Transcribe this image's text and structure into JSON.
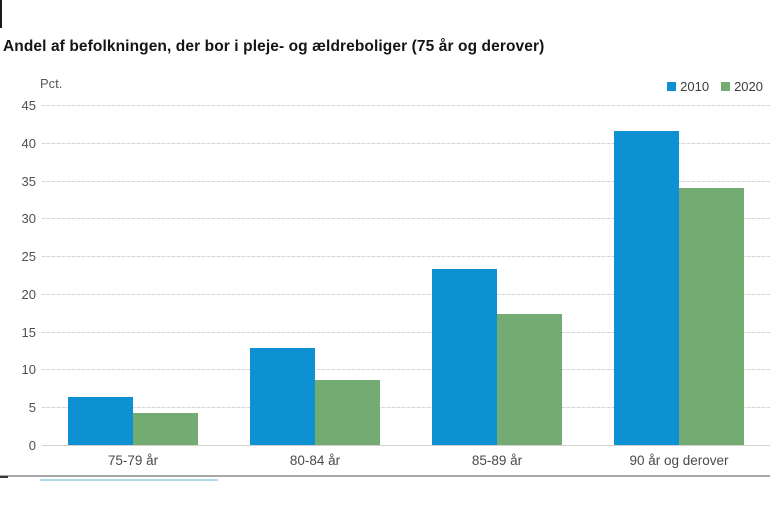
{
  "page": {
    "title": "Andel af befolkningen, der bor i pleje- og ældreboliger (75 år og derover)"
  },
  "chart_data": {
    "type": "bar",
    "title": "Andel af befolkningen, der bor i pleje- og ældreboliger (75 år og derover)",
    "unit_label": "Pct.",
    "ylabel": "Pct.",
    "xlabel": "",
    "categories": [
      "75-79 år",
      "80-84 år",
      "85-89 år",
      "90 år og derover"
    ],
    "series": [
      {
        "name": "2010",
        "color": "#0e91d3",
        "values": [
          6.3,
          12.8,
          23.3,
          41.5
        ]
      },
      {
        "name": "2020",
        "color": "#74ab72",
        "values": [
          4.2,
          8.6,
          17.3,
          34.0
        ]
      }
    ],
    "ylim": [
      0,
      45
    ],
    "ytick_step": 5,
    "yticks": [
      0,
      5,
      10,
      15,
      20,
      25,
      30,
      35,
      40,
      45
    ],
    "grid": true,
    "legend_position": "top-right",
    "colors": {
      "series_2010": "#0e91d3",
      "series_2020": "#74ab72",
      "gridline": "#dcdad6",
      "axis_text": "#4f4f4f",
      "title_text": "#151515",
      "bottom_divider": "#a7a8aa",
      "bottom_underline": "#b0d8ea"
    }
  }
}
